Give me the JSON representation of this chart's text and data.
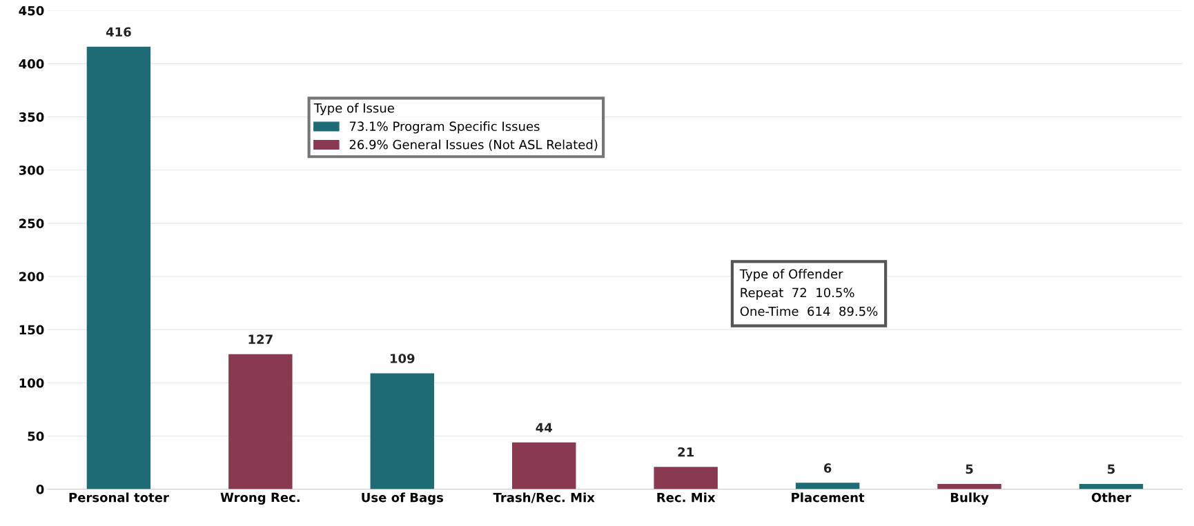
{
  "chart_data": {
    "type": "bar",
    "categories": [
      "Personal toter",
      "Wrong Rec.",
      "Use of Bags",
      "Trash/Rec. Mix",
      "Rec. Mix",
      "Placement",
      "Bulky",
      "Other"
    ],
    "series": [
      {
        "name": "73.1% Program Specific Issues",
        "color": "#1f6b75",
        "values": [
          416,
          null,
          109,
          null,
          null,
          6,
          null,
          5
        ]
      },
      {
        "name": "26.9% General Issues (Not ASL Related)",
        "color": "#8a3a50",
        "values": [
          null,
          127,
          null,
          44,
          21,
          null,
          5,
          null
        ]
      }
    ],
    "legend_title": "Type of Issue",
    "legend": "top",
    "annotations": [
      "Type of Offender",
      "Repeat  72  10.5%",
      "One-Time  614  89.5%"
    ],
    "ylim": [
      0,
      450
    ],
    "yticks": [
      0,
      50,
      100,
      150,
      200,
      250,
      300,
      350,
      400,
      450
    ],
    "grid": "y",
    "data_labels": true
  }
}
